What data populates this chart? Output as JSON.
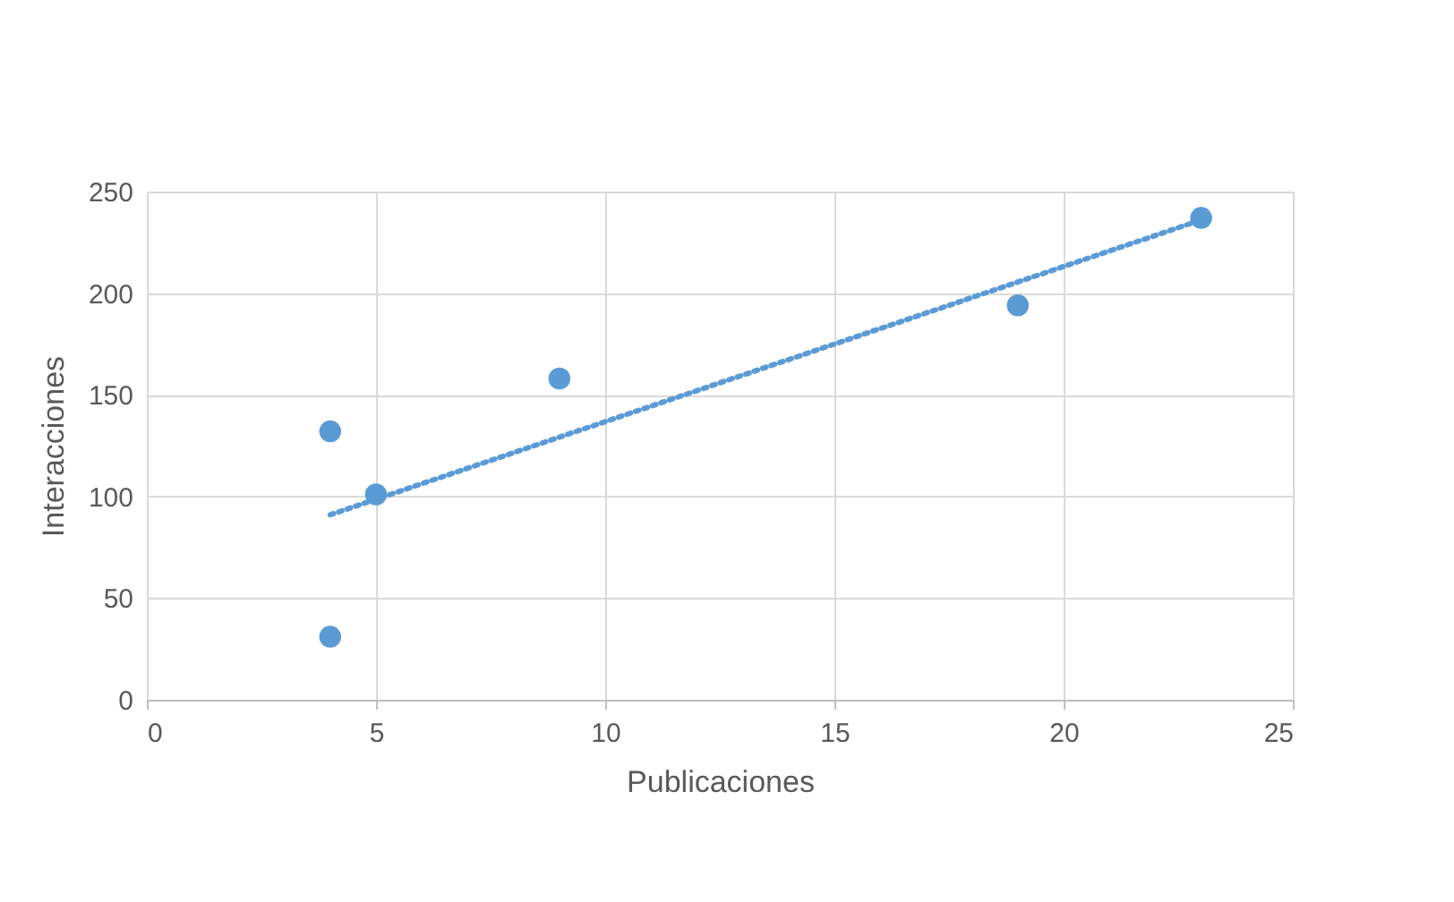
{
  "chart_data": {
    "type": "scatter",
    "xlabel": "Publicaciones",
    "ylabel": "Interacciones",
    "x": [
      4,
      4,
      5,
      9,
      19,
      23
    ],
    "series": [
      {
        "color": "#5b9bd5",
        "values": [
          31,
          132,
          101,
          158,
          194,
          237
        ]
      },
      {
        "type": "line",
        "color": "#5b9bd5",
        "line_style": "dotted",
        "marker": "none",
        "x": [
          4,
          23
        ],
        "values": [
          91,
          236
        ]
      }
    ],
    "xlim": [
      0,
      25
    ],
    "xticks": [
      0,
      5,
      10,
      15,
      20,
      25
    ],
    "ylim": [
      0,
      250
    ],
    "yticks": [
      0,
      50,
      100,
      150,
      200,
      250
    ],
    "grid": true,
    "marker": "circle"
  }
}
